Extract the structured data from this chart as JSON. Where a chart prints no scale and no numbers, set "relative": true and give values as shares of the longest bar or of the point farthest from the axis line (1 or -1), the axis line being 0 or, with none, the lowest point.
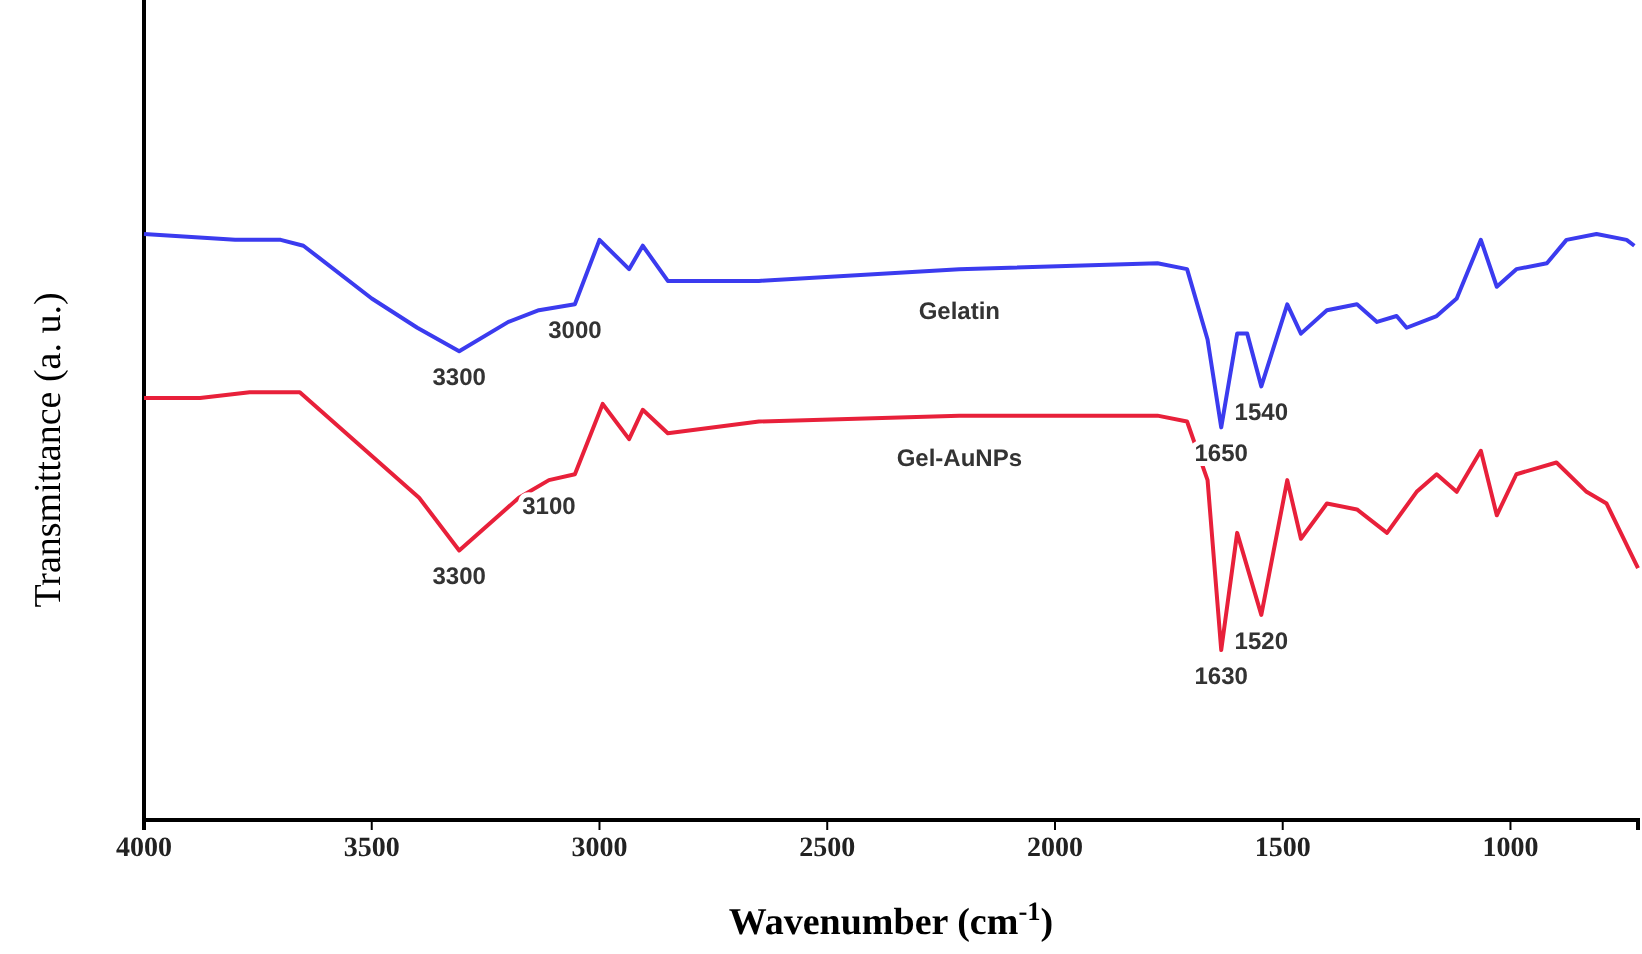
{
  "chart_data": {
    "type": "line",
    "relative": true,
    "xlabel": "Wavenumber (cm$^{-1}$)",
    "ylabel": "Transmittance (a. u.)",
    "xlim": [
      4000,
      720
    ],
    "xticks": [
      4000,
      3500,
      3000,
      2500,
      2000,
      1500,
      1000
    ],
    "tick_labels": "x",
    "grid": false,
    "legend": false,
    "marker": "none",
    "line_style": "solid",
    "series": [
      {
        "name": "Gelatin",
        "color": "#3b3bef",
        "x": [
          4000,
          3800,
          3700,
          3650,
          3500,
          3400,
          3308,
          3200,
          3133,
          3054,
          3000,
          2935,
          2905,
          2850,
          2650,
          2210,
          1775,
          1710,
          1665,
          1635,
          1600,
          1578,
          1547,
          1490,
          1460,
          1403,
          1337,
          1293,
          1250,
          1228,
          1162,
          1118,
          1065,
          1030,
          987,
          920,
          877,
          811,
          745,
          728
        ],
        "values": [
          1.0,
          0.99,
          0.99,
          0.98,
          0.89,
          0.84,
          0.8,
          0.85,
          0.87,
          0.88,
          0.99,
          0.94,
          0.98,
          0.92,
          0.92,
          0.94,
          0.95,
          0.94,
          0.82,
          0.67,
          0.83,
          0.83,
          0.74,
          0.88,
          0.83,
          0.87,
          0.88,
          0.85,
          0.86,
          0.84,
          0.86,
          0.89,
          0.99,
          0.91,
          0.94,
          0.95,
          0.99,
          1.0,
          0.99,
          0.98
        ]
      },
      {
        "name": "Gel-AuNPs",
        "color": "#e8203a",
        "x": [
          4000,
          3877,
          3768,
          3658,
          3527,
          3396,
          3308,
          3177,
          3111,
          3054,
          2993,
          2935,
          2905,
          2850,
          2650,
          2210,
          1775,
          1710,
          1665,
          1635,
          1600,
          1547,
          1490,
          1460,
          1403,
          1337,
          1271,
          1206,
          1162,
          1118,
          1065,
          1030,
          987,
          899,
          833,
          789,
          720
        ],
        "values": [
          0.72,
          0.72,
          0.73,
          0.73,
          0.64,
          0.55,
          0.46,
          0.55,
          0.58,
          0.59,
          0.71,
          0.65,
          0.7,
          0.66,
          0.68,
          0.69,
          0.69,
          0.68,
          0.58,
          0.29,
          0.49,
          0.35,
          0.58,
          0.48,
          0.54,
          0.53,
          0.49,
          0.56,
          0.59,
          0.56,
          0.63,
          0.52,
          0.59,
          0.61,
          0.56,
          0.54,
          0.43
        ]
      }
    ],
    "annotations": [
      {
        "text": "3300",
        "x": 3308,
        "y": 0.8
      },
      {
        "text": "3000",
        "x": 3054,
        "y": 0.88
      },
      {
        "text": "1650",
        "x": 1635,
        "y": 0.67
      },
      {
        "text": "1540",
        "x": 1547,
        "y": 0.74
      },
      {
        "text": "3300",
        "x": 3308,
        "y": 0.46
      },
      {
        "text": "3100",
        "x": 3111,
        "y": 0.58
      },
      {
        "text": "1630",
        "x": 1635,
        "y": 0.29
      },
      {
        "text": "1520",
        "x": 1547,
        "y": 0.35
      }
    ]
  }
}
